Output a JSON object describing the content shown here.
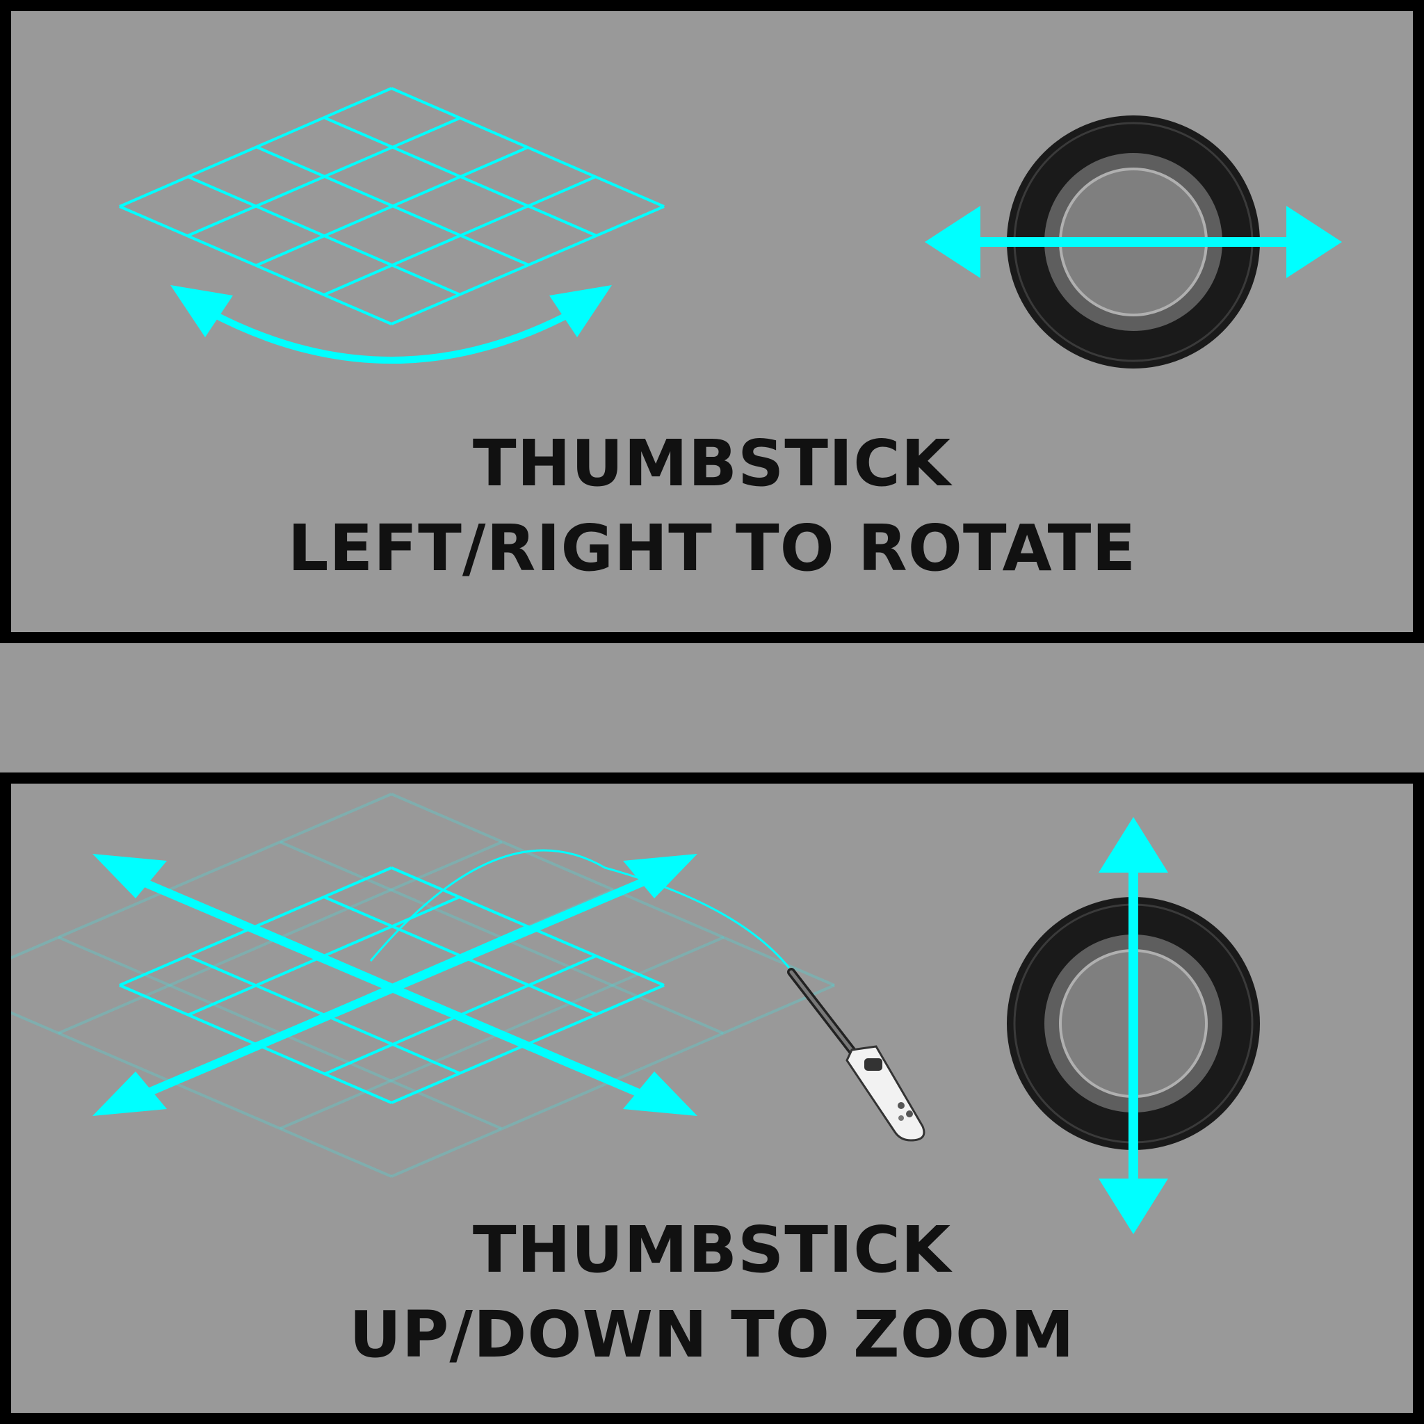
{
  "colors": {
    "background": "#999999",
    "border": "#000000",
    "accent": "#00FFFF",
    "text": "#111111"
  },
  "panels": {
    "rotate": {
      "title": "THUMBSTICK",
      "instruction": "LEFT/RIGHT TO ROTATE",
      "stick_direction": "horizontal",
      "icons": [
        "grid-icon",
        "curved-double-arrow-icon",
        "thumbstick-icon"
      ]
    },
    "zoom": {
      "title": "THUMBSTICK",
      "instruction": "UP/DOWN TO ZOOM",
      "stick_direction": "vertical",
      "icons": [
        "grid-icon",
        "expand-arrows-icon",
        "vr-controller-icon",
        "thumbstick-icon"
      ]
    }
  }
}
